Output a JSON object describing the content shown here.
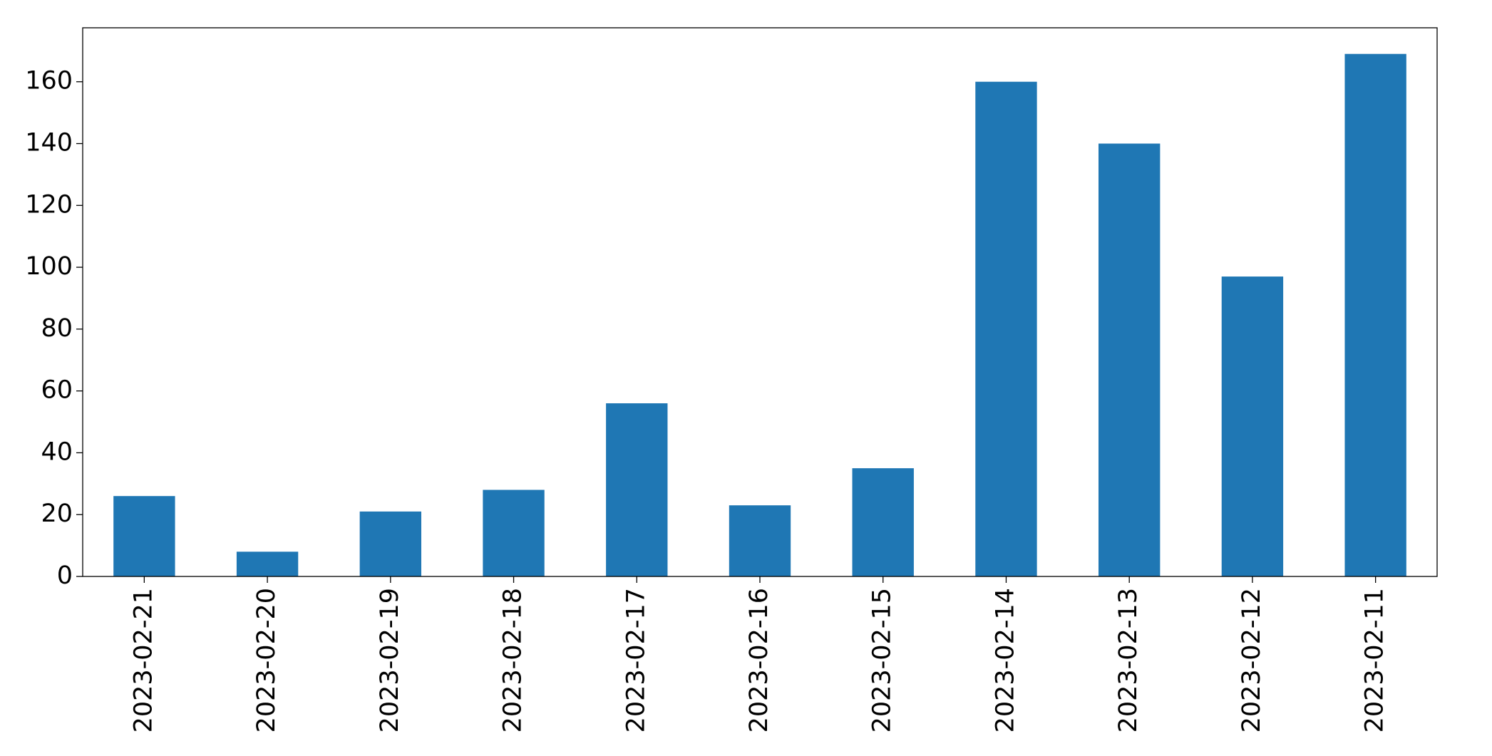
{
  "chart_data": {
    "type": "bar",
    "categories": [
      "2023-02-21",
      "2023-02-20",
      "2023-02-19",
      "2023-02-18",
      "2023-02-17",
      "2023-02-16",
      "2023-02-15",
      "2023-02-14",
      "2023-02-13",
      "2023-02-12",
      "2023-02-11"
    ],
    "values": [
      26,
      8,
      21,
      28,
      56,
      23,
      35,
      160,
      140,
      97,
      169
    ],
    "color": "#1f77b4",
    "ylim": [
      0,
      177.45
    ],
    "yticks": [
      0,
      20,
      40,
      60,
      80,
      100,
      120,
      140,
      160
    ],
    "grid": false
  }
}
